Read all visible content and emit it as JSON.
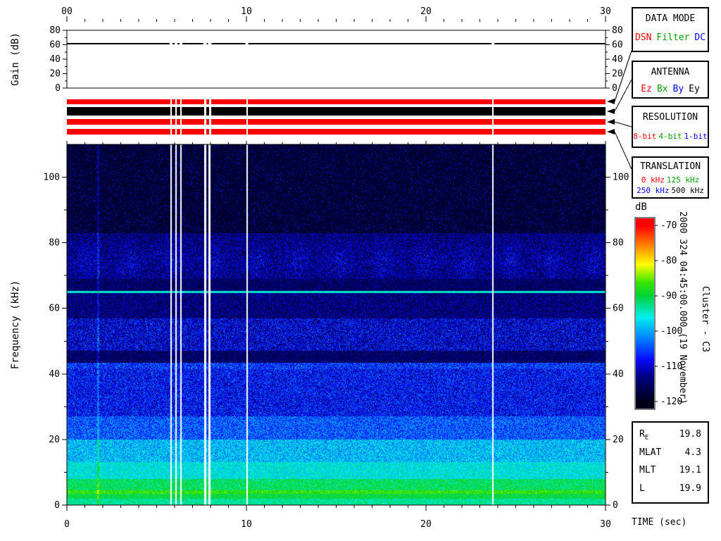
{
  "chart_data": [
    {
      "type": "line",
      "name": "gain-panel",
      "ylabel": "Gain (dB)",
      "ylim": [
        0,
        80
      ],
      "yticks": [
        0,
        20,
        40,
        60,
        80
      ],
      "xlim_sec": [
        0,
        30
      ],
      "top_xticks": [
        {
          "t": 0,
          "label": "00"
        },
        {
          "t": 10,
          "label": "10"
        },
        {
          "t": 20,
          "label": "20"
        },
        {
          "t": 30,
          "label": "30"
        }
      ],
      "gain_db": 61.5
    },
    {
      "type": "heatmap",
      "name": "wbd-spectrogram",
      "ylabel": "Frequency (kHz)",
      "xlabel": "TIME (sec)",
      "xlim_sec": [
        0,
        30
      ],
      "ylim_khz": [
        0,
        110
      ],
      "yticks": [
        0,
        20,
        40,
        60,
        80,
        100
      ],
      "bottom_xticks": [
        {
          "t": 0,
          "label": "0"
        },
        {
          "t": 10,
          "label": "10"
        },
        {
          "t": 20,
          "label": "20"
        },
        {
          "t": 30,
          "label": "30"
        }
      ],
      "narrowband_line_khz": 65,
      "interference_line_sec": 1.75,
      "data_gaps": [
        {
          "t": 5.8,
          "w": 2
        },
        {
          "t": 6.08,
          "w": 2
        },
        {
          "t": 6.35,
          "w": 2
        },
        {
          "t": 7.69,
          "w": 3
        },
        {
          "t": 7.96,
          "w": 3
        },
        {
          "t": 10.02,
          "w": 2
        },
        {
          "t": 23.73,
          "w": 2
        }
      ],
      "bands": [
        {
          "fmin": 0,
          "fmax": 2,
          "base": -93,
          "noise": 3
        },
        {
          "fmin": 2,
          "fmax": 3.5,
          "base": -90,
          "noise": 3
        },
        {
          "fmin": 3.5,
          "fmax": 4.5,
          "base": -87,
          "noise": 3
        },
        {
          "fmin": 4.5,
          "fmax": 8,
          "base": -91,
          "noise": 4
        },
        {
          "fmin": 8,
          "fmax": 13,
          "base": -96,
          "noise": 4
        },
        {
          "fmin": 13,
          "fmax": 20,
          "base": -99,
          "noise": 5
        },
        {
          "fmin": 20,
          "fmax": 27,
          "base": -104,
          "noise": 5
        },
        {
          "fmin": 27,
          "fmax": 41.5,
          "base": -108,
          "noise": 6
        },
        {
          "fmin": 41.5,
          "fmax": 43.5,
          "base": -106,
          "noise": 6
        },
        {
          "fmin": 43.5,
          "fmax": 47,
          "base": -115,
          "noise": 4
        },
        {
          "fmin": 47,
          "fmax": 57,
          "base": -110,
          "noise": 7
        },
        {
          "fmin": 57,
          "fmax": 64.6,
          "base": -114,
          "noise": 5
        },
        {
          "fmin": 64.6,
          "fmax": 65.4,
          "base": -95,
          "noise": 2
        },
        {
          "fmin": 65.4,
          "fmax": 69,
          "base": -115,
          "noise": 4
        },
        {
          "fmin": 69,
          "fmax": 83,
          "base": -114,
          "noise": 6,
          "blob": 1
        },
        {
          "fmin": 83,
          "fmax": 110,
          "base": -118,
          "noise": 3,
          "speckle": 0.05
        }
      ]
    }
  ],
  "status_bars": [
    {
      "name": "data-mode",
      "value": "DSN",
      "color": "#ff0000"
    },
    {
      "name": "antenna",
      "value": "Ey",
      "color": "#000000"
    },
    {
      "name": "resolution",
      "value": "8-bit",
      "color": "#ff0000"
    },
    {
      "name": "translation",
      "value": "0 kHz",
      "color": "#ff0000"
    }
  ],
  "legends": [
    {
      "title": "DATA MODE",
      "items": [
        {
          "label": "DSN",
          "color": "#ff0000"
        },
        {
          "label": "Filter",
          "color": "#00a000"
        },
        {
          "label": "DC",
          "color": "#0000ff"
        }
      ]
    },
    {
      "title": "ANTENNA",
      "items": [
        {
          "label": "Ez",
          "color": "#ff0000"
        },
        {
          "label": "Bx",
          "color": "#00a000"
        },
        {
          "label": "By",
          "color": "#0000ff"
        },
        {
          "label": "Ey",
          "color": "#000000"
        }
      ]
    },
    {
      "title": "RESOLUTION",
      "items": [
        {
          "label": "8-bit",
          "color": "#ff0000"
        },
        {
          "label": "4-bit",
          "color": "#00a000"
        },
        {
          "label": "1-bit",
          "color": "#0000ff"
        }
      ]
    },
    {
      "title": "TRANSLATION",
      "rows": [
        [
          {
            "label": "0 kHz",
            "color": "#ff0000"
          },
          {
            "label": "125 kHz",
            "color": "#00a000"
          }
        ],
        [
          {
            "label": "250 kHz",
            "color": "#0000ff"
          },
          {
            "label": "500 kHz",
            "color": "#000000"
          }
        ]
      ]
    }
  ],
  "colorbar": {
    "label": "dB",
    "ticks": [
      -70,
      -80,
      -90,
      -100,
      -110,
      -120
    ],
    "min": -120,
    "max": -70,
    "stops": [
      {
        "v": -120,
        "c": [
          0,
          0,
          25
        ]
      },
      {
        "v": -113,
        "c": [
          0,
          0,
          130
        ]
      },
      {
        "v": -108,
        "c": [
          10,
          10,
          255
        ]
      },
      {
        "v": -102,
        "c": [
          0,
          130,
          255
        ]
      },
      {
        "v": -96,
        "c": [
          0,
          240,
          240
        ]
      },
      {
        "v": -90,
        "c": [
          0,
          210,
          60
        ]
      },
      {
        "v": -86,
        "c": [
          60,
          230,
          0
        ]
      },
      {
        "v": -81,
        "c": [
          255,
          255,
          0
        ]
      },
      {
        "v": -76,
        "c": [
          255,
          140,
          0
        ]
      },
      {
        "v": -70,
        "c": [
          255,
          0,
          0
        ]
      }
    ]
  },
  "side_text": {
    "datetime": "2000 324 04:45:00.000 (19 November)",
    "spacecraft": "Cluster - C3"
  },
  "info_box": {
    "rows": [
      {
        "label": "R",
        "sub": "E",
        "value": "19.8"
      },
      {
        "label": "MLAT",
        "sub": "",
        "value": "4.3"
      },
      {
        "label": "MLT",
        "sub": "",
        "value": "19.1"
      },
      {
        "label": "L",
        "sub": "",
        "value": "19.9"
      }
    ]
  },
  "time_axis_label": "TIME (sec)"
}
